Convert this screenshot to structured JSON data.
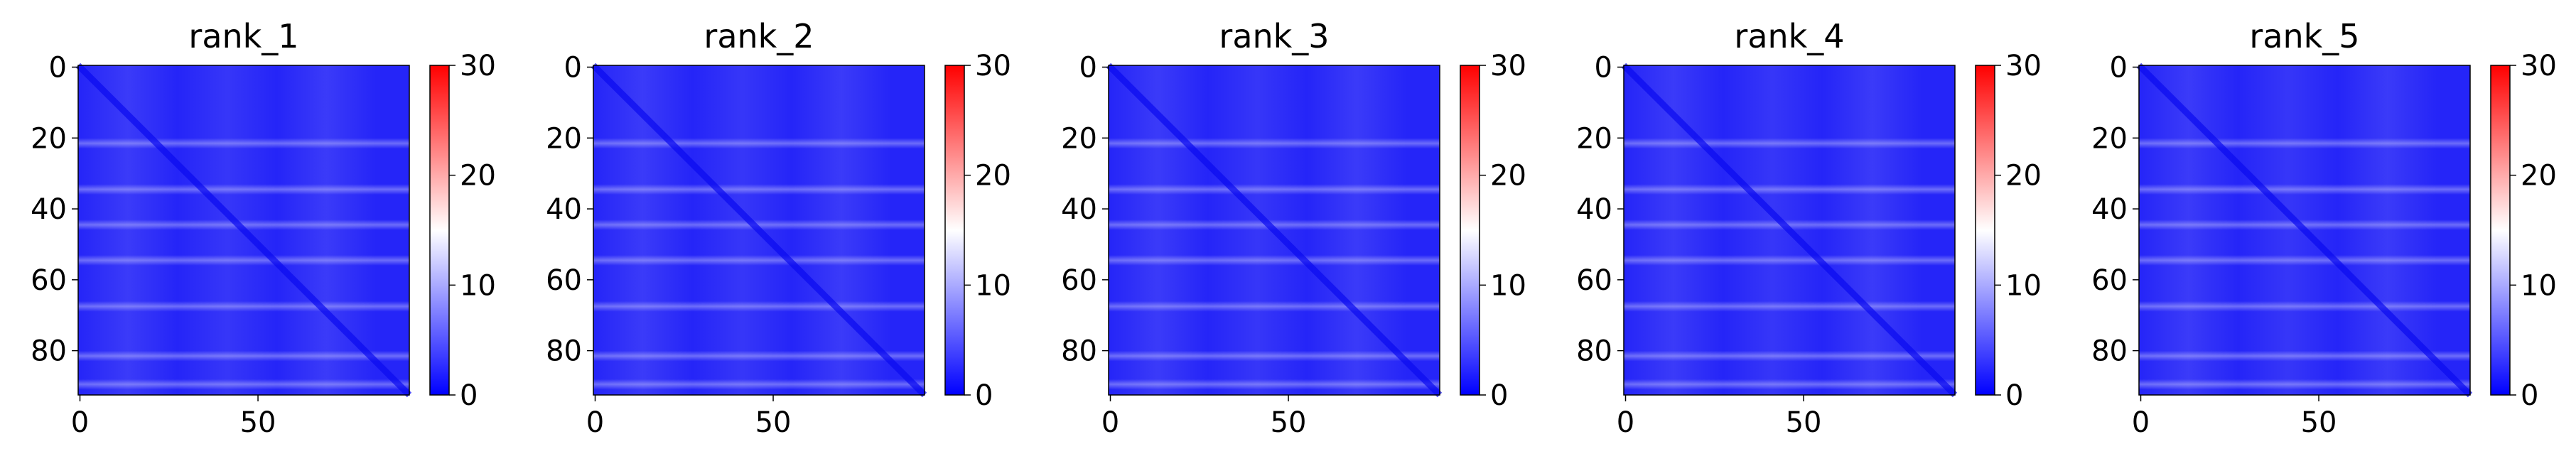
{
  "chart_data": [
    {
      "type": "heatmap",
      "title": "rank_1",
      "x_ticks": [
        "0",
        "50"
      ],
      "y_ticks": [
        "0",
        "20",
        "40",
        "60",
        "80"
      ],
      "colorbar": {
        "ticks": [
          "0",
          "10",
          "20",
          "30"
        ],
        "range": [
          0,
          30
        ],
        "colormap": "bwr"
      },
      "matrix_size": 93,
      "value_summary": "mostly 0-5 (blue); diagonal about 0; brighter horizontal bands near rows 22, 35, 45, 55, 68, 82"
    },
    {
      "type": "heatmap",
      "title": "rank_2",
      "x_ticks": [
        "0",
        "50"
      ],
      "y_ticks": [
        "0",
        "20",
        "40",
        "60",
        "80"
      ],
      "colorbar": {
        "ticks": [
          "0",
          "10",
          "20",
          "30"
        ],
        "range": [
          0,
          30
        ],
        "colormap": "bwr"
      },
      "matrix_size": 93,
      "value_summary": "mostly 0-5 (blue); diagonal about 0; brighter horizontal bands near rows 22, 35, 45, 55, 68, 82"
    },
    {
      "type": "heatmap",
      "title": "rank_3",
      "x_ticks": [
        "0",
        "50"
      ],
      "y_ticks": [
        "0",
        "20",
        "40",
        "60",
        "80"
      ],
      "colorbar": {
        "ticks": [
          "0",
          "10",
          "20",
          "30"
        ],
        "range": [
          0,
          30
        ],
        "colormap": "bwr"
      },
      "matrix_size": 93,
      "value_summary": "mostly 0-5 (blue); diagonal about 0; brighter horizontal bands near rows 22, 35, 45, 55, 68, 82"
    },
    {
      "type": "heatmap",
      "title": "rank_4",
      "x_ticks": [
        "0",
        "50"
      ],
      "y_ticks": [
        "0",
        "20",
        "40",
        "60",
        "80"
      ],
      "colorbar": {
        "ticks": [
          "0",
          "10",
          "20",
          "30"
        ],
        "range": [
          0,
          30
        ],
        "colormap": "bwr"
      },
      "matrix_size": 93,
      "value_summary": "mostly 0-5 (blue); diagonal about 0; brighter horizontal bands near rows 22, 35, 45, 55, 68, 82"
    },
    {
      "type": "heatmap",
      "title": "rank_5",
      "x_ticks": [
        "0",
        "50"
      ],
      "y_ticks": [
        "0",
        "20",
        "40",
        "60",
        "80"
      ],
      "colorbar": {
        "ticks": [
          "0",
          "10",
          "20",
          "30"
        ],
        "range": [
          0,
          30
        ],
        "colormap": "bwr"
      },
      "matrix_size": 93,
      "value_summary": "mostly 0-5 (blue); diagonal about 0; brighter horizontal bands near rows 22, 35, 45, 55, 68, 82"
    }
  ],
  "colors": {
    "low": "#0000ff",
    "mid": "#ffffff",
    "high": "#ff0000"
  }
}
